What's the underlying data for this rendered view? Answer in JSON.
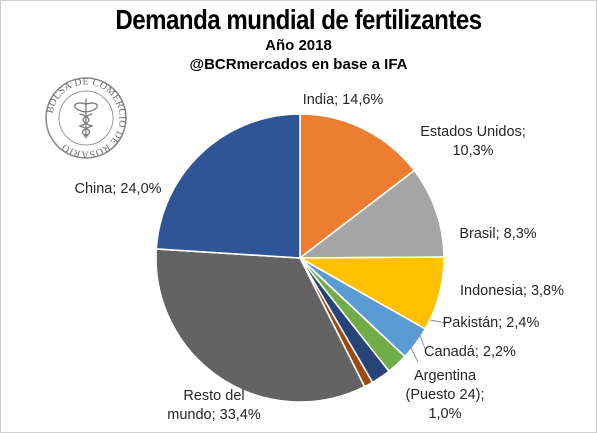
{
  "header": {
    "title": "Demanda mundial de fertilizantes",
    "subtitle": "Año 2018",
    "source": "@BCRmercados en base a IFA"
  },
  "logo": {
    "text": "BOLSA DE COMERCIO DE ROSARIO"
  },
  "chart_data": {
    "type": "pie",
    "title": "Demanda mundial de fertilizantes",
    "subtitle": "Año 2018",
    "start_angle_deg": 0,
    "direction": "clockwise",
    "slices": [
      {
        "name": "India",
        "value": 14.6,
        "label_lines": [
          "India; 14,6%"
        ],
        "color": "#ED7D31"
      },
      {
        "name": "Estados Unidos",
        "value": 10.3,
        "label_lines": [
          "Estados Unidos;",
          "10,3%"
        ],
        "color": "#A5A5A5"
      },
      {
        "name": "Brasil",
        "value": 8.3,
        "label_lines": [
          "Brasil; 8,3%"
        ],
        "color": "#FFC000"
      },
      {
        "name": "Indonesia",
        "value": 3.8,
        "label_lines": [
          "Indonesia; 3,8%"
        ],
        "color": "#5B9BD5"
      },
      {
        "name": "Pakistán",
        "value": 2.4,
        "label_lines": [
          "Pakistán; 2,4%"
        ],
        "color": "#70AD47"
      },
      {
        "name": "Canadá",
        "value": 2.2,
        "label_lines": [
          "Canadá; 2,2%"
        ],
        "color": "#264478"
      },
      {
        "name": "Argentina",
        "value": 1.0,
        "label_lines": [
          "Argentina",
          "(Puesto 24);",
          "1,0%"
        ],
        "color": "#9E480E"
      },
      {
        "name": "Resto del mundo",
        "value": 33.4,
        "label_lines": [
          "Resto del",
          "mundo; 33,4%"
        ],
        "color": "#636363"
      },
      {
        "name": "China",
        "value": 24.0,
        "label_lines": [
          "China; 24,0%"
        ],
        "color": "#2F5597"
      }
    ]
  }
}
